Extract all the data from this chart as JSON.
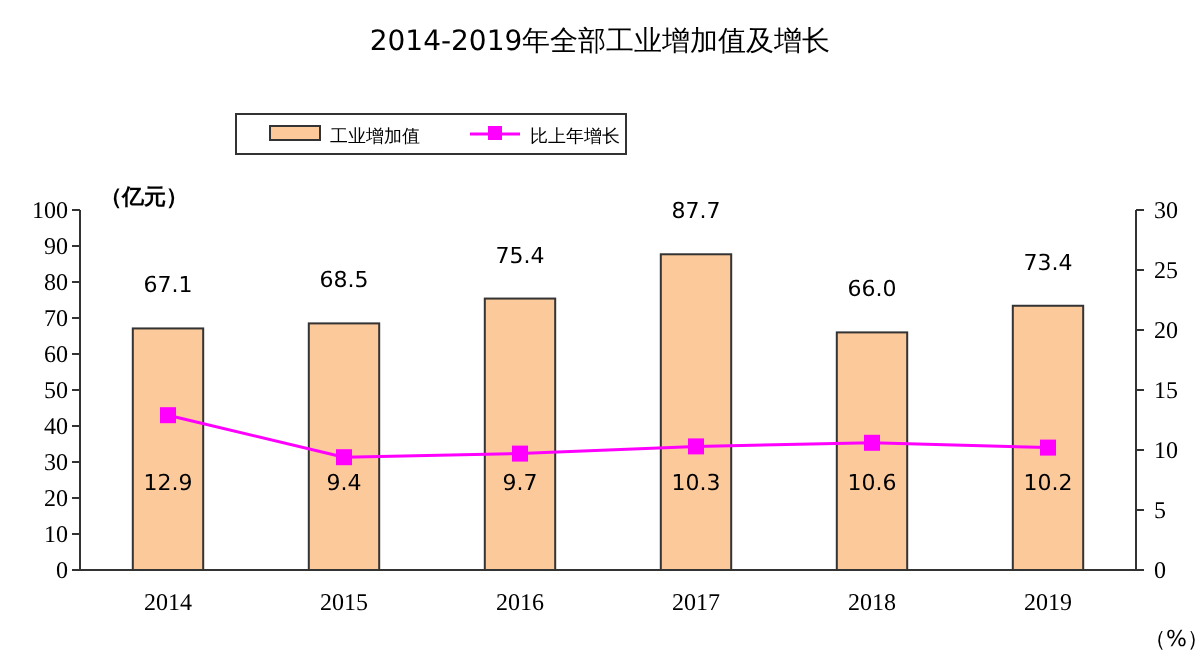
{
  "chart_data": {
    "type": "bar",
    "title": "2014-2019年全部工业增加值及增长",
    "ylabel": "（亿元）",
    "y2label": "（%）",
    "categories": [
      "2014",
      "2015",
      "2016",
      "2017",
      "2018",
      "2019"
    ],
    "series": [
      {
        "name": "工业增加值",
        "color": "#fcc99a",
        "values": [
          67.1,
          68.5,
          75.4,
          87.7,
          66.0,
          73.4
        ],
        "value_labels": [
          "67.1",
          "68.5",
          "75.4",
          "87.7",
          "66.0",
          "73.4"
        ]
      },
      {
        "name": "比上年增长",
        "type": "line",
        "axis": "y2",
        "color": "#ff00ff",
        "marker": "square",
        "values": [
          12.9,
          9.4,
          9.7,
          10.3,
          10.6,
          10.2
        ],
        "value_labels": [
          "12.9",
          "9.4",
          "9.7",
          "10.3",
          "10.6",
          "10.2"
        ]
      }
    ],
    "ylim": [
      0,
      100
    ],
    "yticks": [
      0,
      10,
      20,
      30,
      40,
      50,
      60,
      70,
      80,
      90,
      100
    ],
    "y2lim": [
      0,
      30
    ],
    "y2ticks": [
      0,
      5,
      10,
      15,
      20,
      25,
      30
    ],
    "legend": "top",
    "grid": false
  }
}
